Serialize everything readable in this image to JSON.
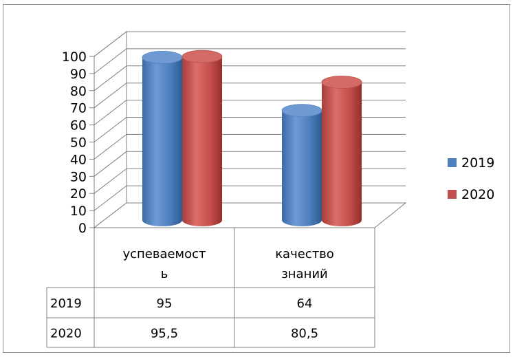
{
  "chart_data": {
    "type": "bar",
    "style": "3d-cylinder",
    "categories": [
      "успеваемость",
      "качество знаний"
    ],
    "category_label_lines": [
      [
        "успеваемост",
        "ь"
      ],
      [
        "качество",
        "знаний"
      ]
    ],
    "series": [
      {
        "name": "2019",
        "values": [
          95,
          64
        ],
        "value_labels": [
          "95",
          "64"
        ],
        "color": "#4f81bd"
      },
      {
        "name": "2020",
        "values": [
          95.5,
          80.5
        ],
        "value_labels": [
          "95,5",
          "80,5"
        ],
        "color": "#c0504d"
      }
    ],
    "ylim": [
      0,
      100
    ],
    "yticks": [
      0,
      10,
      20,
      30,
      40,
      50,
      60,
      70,
      80,
      90,
      100
    ],
    "grid": true,
    "legend": "right",
    "data_table": true
  }
}
